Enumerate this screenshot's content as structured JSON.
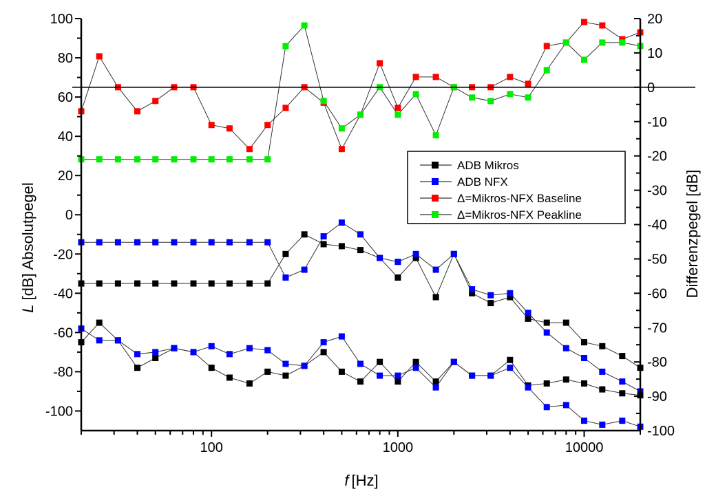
{
  "chart_data": {
    "type": "line",
    "title": "",
    "xlabel": "f [Hz]",
    "xlabel_var": "f",
    "xlabel_unit": "[Hz]",
    "ylabel_left": "L [dB] Absolutpegel",
    "ylabel_left_var": "L",
    "ylabel_left_rest": " [dB] Absolutpegel",
    "ylabel_right": "Differenzpegel [dB]",
    "xscale": "log",
    "xlim": [
      20,
      20000
    ],
    "ylim_left": [
      -110,
      100
    ],
    "ylim_right": [
      -100,
      20
    ],
    "x_ticks": [
      100,
      1000,
      10000
    ],
    "x_tick_labels": [
      "100",
      "1000",
      "10000"
    ],
    "y_left_ticks": [
      100,
      80,
      60,
      40,
      20,
      0,
      -20,
      -40,
      -60,
      -80,
      -100
    ],
    "y_left_tick_labels": [
      "100",
      "80",
      "60",
      "40",
      "20",
      "0",
      "-20",
      "-40",
      "-60",
      "-80",
      "-100"
    ],
    "y_right_ticks": [
      20,
      10,
      0,
      -10,
      -20,
      -30,
      -40,
      -50,
      -60,
      -70,
      -80,
      -90,
      -100
    ],
    "y_right_tick_labels": [
      "20",
      "10",
      "0",
      "-10",
      "-20",
      "-30",
      "-40",
      "-50",
      "-60",
      "-70",
      "-80",
      "-90",
      "-100"
    ],
    "reference_line_right": 0,
    "grid": false,
    "legend_position": "center-right",
    "legend": [
      {
        "label": "ADB Mikros",
        "color": "#000000"
      },
      {
        "label": "ADB NFX",
        "color": "#0000ff"
      },
      {
        "label": "Δ=Mikros-NFX Baseline",
        "color": "#ff0000"
      },
      {
        "label": "Δ=Mikros-NFX Peakline",
        "color": "#00ee00"
      }
    ],
    "x": [
      20,
      25,
      31.5,
      40,
      50,
      63,
      80,
      100,
      125,
      160,
      200,
      250,
      315,
      400,
      500,
      630,
      800,
      1000,
      1250,
      1600,
      2000,
      2500,
      3150,
      4000,
      5000,
      6300,
      8000,
      10000,
      12500,
      16000,
      20000
    ],
    "series": [
      {
        "name": "ADB Mikros (Peakline)",
        "axis": "left",
        "color": "#000000",
        "values": [
          -35,
          -35,
          -35,
          -35,
          -35,
          -35,
          -35,
          -35,
          -35,
          -35,
          -35,
          -20,
          -10,
          -15,
          -16,
          -18,
          -22,
          -32,
          -22,
          -42,
          -20,
          -40,
          -45,
          -42,
          -53,
          -55,
          -55,
          -65,
          -67,
          -72,
          -78
        ]
      },
      {
        "name": "ADB NFX (Peakline)",
        "axis": "left",
        "color": "#0000ff",
        "values": [
          -14,
          -14,
          -14,
          -14,
          -14,
          -14,
          -14,
          -14,
          -14,
          -14,
          -14,
          -32,
          -28,
          -11,
          -4,
          -10,
          -22,
          -24,
          -20,
          -28,
          -20,
          -38,
          -41,
          -40,
          -50,
          -60,
          -68,
          -73,
          -80,
          -85,
          -90
        ]
      },
      {
        "name": "ADB Mikros (Baseline)",
        "axis": "left",
        "color": "#000000",
        "values": [
          -65,
          -55,
          -64,
          -78,
          -73,
          -68,
          -70,
          -78,
          -83,
          -86,
          -80,
          -82,
          -77,
          -70,
          -80,
          -85,
          -75,
          -85,
          -75,
          -85,
          -75,
          -82,
          -82,
          -74,
          -87,
          -86,
          -84,
          -86,
          -89,
          -91,
          -92
        ]
      },
      {
        "name": "ADB NFX (Baseline)",
        "axis": "left",
        "color": "#0000ff",
        "values": [
          -58,
          -64,
          -64,
          -71,
          -70,
          -68,
          -70,
          -67,
          -71,
          -68,
          -69,
          -76,
          -77,
          -65,
          -62,
          -76,
          -82,
          -82,
          -78,
          -88,
          -75,
          -82,
          -82,
          -78,
          -88,
          -98,
          -97,
          -105,
          -107,
          -105,
          -108
        ]
      },
      {
        "name": "Δ=Mikros-NFX Baseline",
        "axis": "right",
        "color": "#ff0000",
        "values": [
          -7,
          9,
          0,
          -7,
          -4,
          0,
          0,
          -11,
          -12,
          -18,
          -11,
          -6,
          0,
          -4.5,
          -18,
          -8,
          7,
          -6,
          3,
          3,
          0,
          0,
          0,
          3,
          1,
          12,
          13,
          19,
          18,
          14,
          16
        ]
      },
      {
        "name": "Δ=Mikros-NFX Peakline",
        "axis": "right",
        "color": "#00ee00",
        "values": [
          -21,
          -21,
          -21,
          -21,
          -21,
          -21,
          -21,
          -21,
          -21,
          -21,
          -21,
          12,
          18,
          -4,
          -12,
          -8,
          0,
          -8,
          -2,
          -14,
          0,
          -3,
          -4,
          -2,
          -3,
          5,
          13,
          8,
          13,
          13,
          12
        ]
      }
    ]
  }
}
